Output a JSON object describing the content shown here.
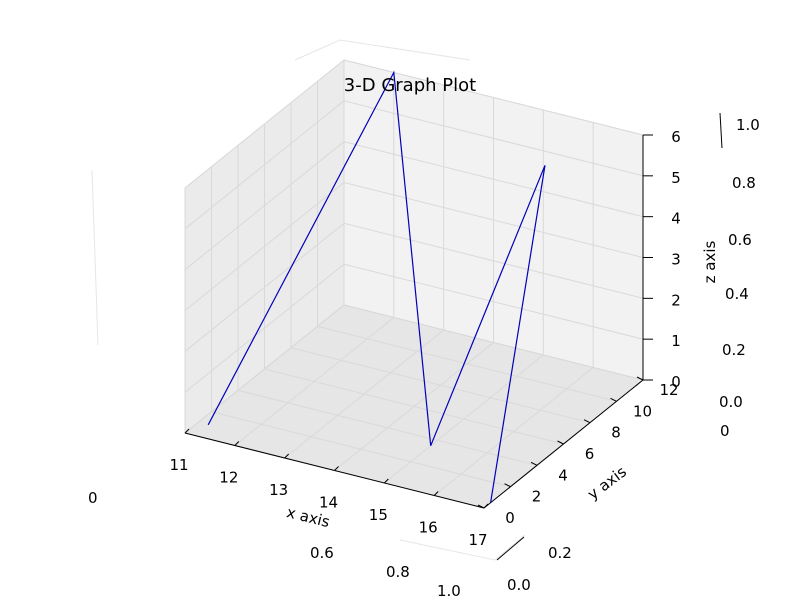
{
  "chart_data": {
    "type": "line",
    "title": "3-D Graph Plot",
    "xlabel": "x axis",
    "ylabel": "y axis",
    "zlabel": "z axis",
    "xlim": [
      11,
      17
    ],
    "ylim": [
      0,
      12
    ],
    "zlim": [
      0,
      6
    ],
    "x_ticks": [
      "11",
      "12",
      "13",
      "14",
      "15",
      "16",
      "17"
    ],
    "y_ticks": [
      "0",
      "2",
      "4",
      "6",
      "8",
      "10",
      "12"
    ],
    "z_ticks": [
      "0",
      "1",
      "2",
      "3",
      "4",
      "5",
      "6"
    ],
    "grid": true,
    "series": [
      {
        "color": "#0000bb",
        "points": [
          {
            "x": 11.2,
            "y": 1.0,
            "z": 0.0
          },
          {
            "x": 12.0,
            "y": 12.0,
            "z": 6.0
          },
          {
            "x": 15.0,
            "y": 3.5,
            "z": 0.0
          },
          {
            "x": 15.3,
            "y": 11.0,
            "z": 5.0
          },
          {
            "x": 17.0,
            "y": 0.5,
            "z": 0.0
          }
        ]
      }
    ]
  },
  "ghost_axes": {
    "top_right_ticks": [
      "1.0",
      "0.8",
      "0.6",
      "0.4",
      "0.2",
      "0.0"
    ],
    "right_zero": "0",
    "left_zero": "0",
    "bottom_left_ticks": [
      "0.6",
      "0.8",
      "1.0"
    ],
    "bottom_right_ticks": [
      "0.2",
      "0.0"
    ]
  }
}
